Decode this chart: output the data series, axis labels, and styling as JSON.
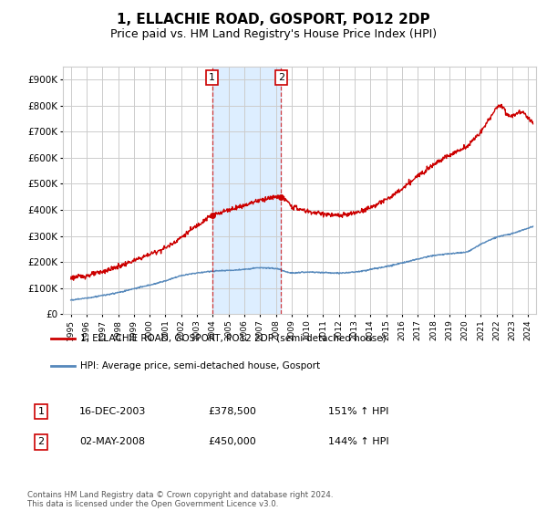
{
  "title": "1, ELLACHIE ROAD, GOSPORT, PO12 2DP",
  "subtitle": "Price paid vs. HM Land Registry's House Price Index (HPI)",
  "ylim": [
    0,
    950000
  ],
  "yticks": [
    0,
    100000,
    200000,
    300000,
    400000,
    500000,
    600000,
    700000,
    800000,
    900000
  ],
  "ytick_labels": [
    "£0",
    "£100K",
    "£200K",
    "£300K",
    "£400K",
    "£500K",
    "£600K",
    "£700K",
    "£800K",
    "£900K"
  ],
  "xlim_start": 1994.5,
  "xlim_end": 2024.5,
  "red_line_color": "#cc0000",
  "blue_line_color": "#5588bb",
  "sale1_year": 2003.96,
  "sale1_price": 378500,
  "sale2_year": 2008.33,
  "sale2_price": 450000,
  "legend_label_red": "1, ELLACHIE ROAD, GOSPORT, PO12 2DP (semi-detached house)",
  "legend_label_blue": "HPI: Average price, semi-detached house, Gosport",
  "annotation1_date": "16-DEC-2003",
  "annotation1_price": "£378,500",
  "annotation1_hpi": "151% ↑ HPI",
  "annotation2_date": "02-MAY-2008",
  "annotation2_price": "£450,000",
  "annotation2_hpi": "144% ↑ HPI",
  "footer": "Contains HM Land Registry data © Crown copyright and database right 2024.\nThis data is licensed under the Open Government Licence v3.0.",
  "bg_color": "#ffffff",
  "shaded_color": "#ddeeff",
  "grid_color": "#cccccc",
  "title_fontsize": 11,
  "subtitle_fontsize": 9
}
